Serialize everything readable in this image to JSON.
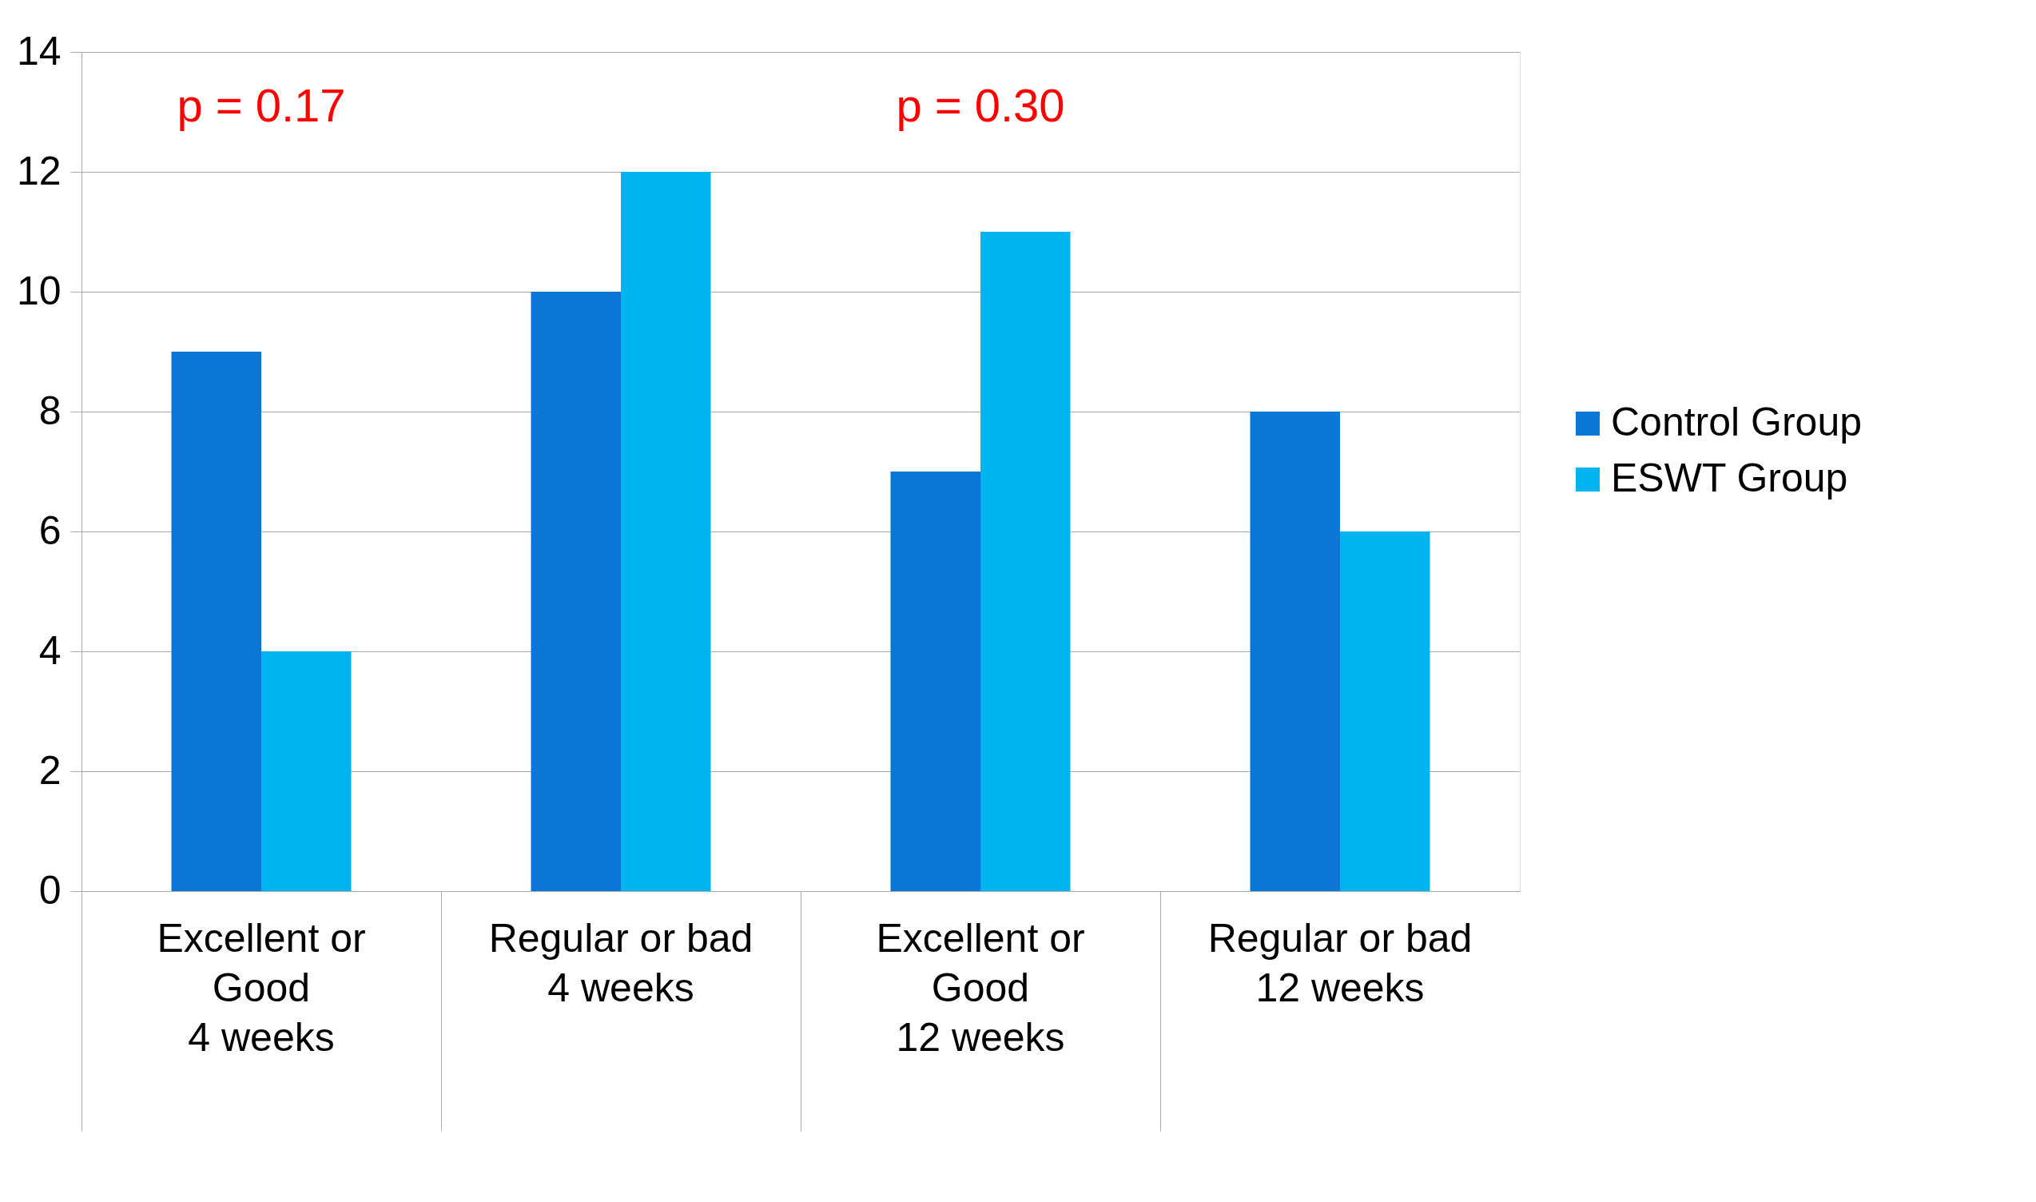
{
  "chart_data": {
    "type": "bar",
    "categories": [
      "Excellent or\nGood\n\n4 weeks",
      "Regular or bad\n\n\n4 weeks",
      "Excellent or\nGood\n\n12  weeks",
      "Regular or bad\n\n\n12  weeks"
    ],
    "series": [
      {
        "name": "Control Group",
        "color": "#0a76d6",
        "values": [
          9,
          10,
          7,
          8
        ]
      },
      {
        "name": "ESWT Group",
        "color": "#00b4f0",
        "values": [
          4,
          12,
          11,
          6
        ]
      }
    ],
    "ylim": [
      0,
      14
    ],
    "yticks": [
      0,
      2,
      4,
      6,
      8,
      10,
      12,
      14
    ],
    "grid": "y",
    "legend": "right",
    "annotations": [
      "p = 0.17",
      "p = 0.30"
    ]
  }
}
